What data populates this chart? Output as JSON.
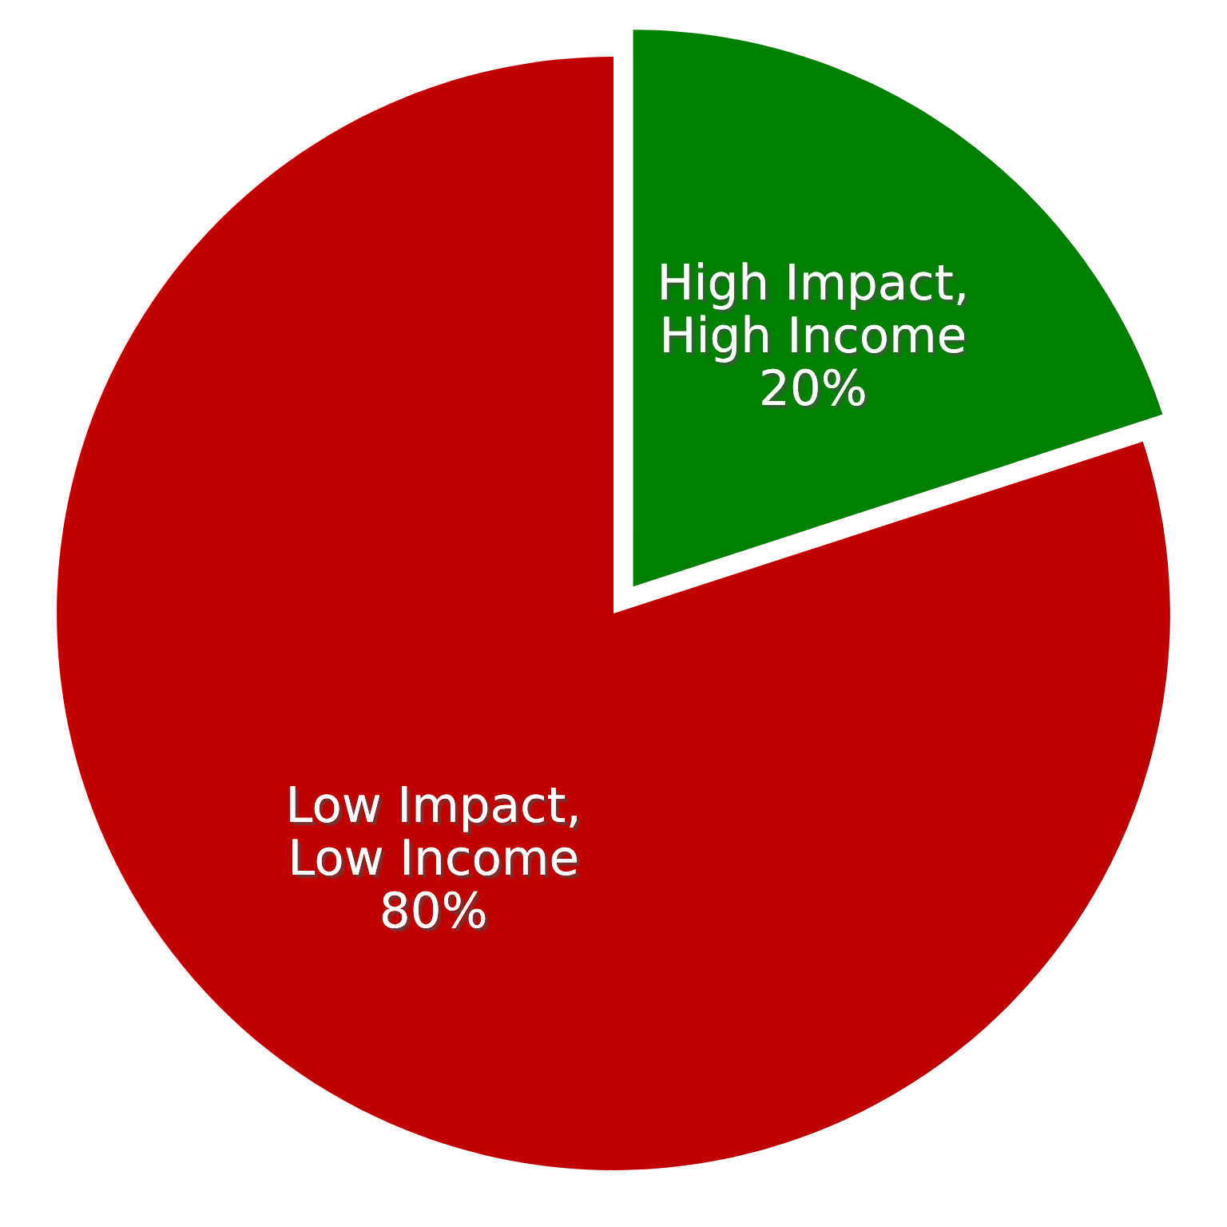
{
  "chart_data": {
    "type": "pie",
    "categories": [
      "High Impact,\nHigh Income",
      "Low Impact,\nLow Income"
    ],
    "values": [
      20,
      80
    ],
    "colors": [
      "#008000",
      "#c00000"
    ],
    "value_labels": [
      "20%",
      "80%"
    ]
  }
}
